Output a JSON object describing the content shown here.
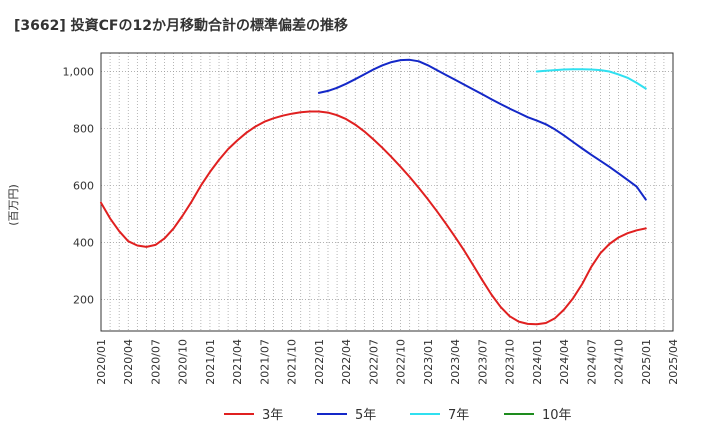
{
  "chart_data": {
    "type": "line",
    "title": "[3662]  投資CFの12か月移動合計の標準偏差の推移",
    "ylabel": "(百万円)",
    "xlabel": "",
    "ylim": [
      90,
      1065
    ],
    "yticks": [
      200,
      400,
      600,
      800,
      "1,000"
    ],
    "ytick_values": [
      200,
      400,
      600,
      800,
      1000
    ],
    "xlim": [
      "2020-01",
      "2025-04"
    ],
    "xticks": [
      "2020/01",
      "2020/04",
      "2020/07",
      "2020/10",
      "2021/01",
      "2021/04",
      "2021/07",
      "2021/10",
      "2022/01",
      "2022/04",
      "2022/07",
      "2022/10",
      "2023/01",
      "2023/04",
      "2023/07",
      "2023/10",
      "2024/01",
      "2024/04",
      "2024/07",
      "2024/10",
      "2025/01",
      "2025/04"
    ],
    "grid": true,
    "legend_position": "bottom",
    "series": [
      {
        "name": "3年",
        "color": "#e02020",
        "x": [
          "2020-01",
          "2020-02",
          "2020-03",
          "2020-04",
          "2020-05",
          "2020-06",
          "2020-07",
          "2020-08",
          "2020-09",
          "2020-10",
          "2020-11",
          "2020-12",
          "2021-01",
          "2021-02",
          "2021-03",
          "2021-04",
          "2021-05",
          "2021-06",
          "2021-07",
          "2021-08",
          "2021-09",
          "2021-10",
          "2021-11",
          "2021-12",
          "2022-01",
          "2022-02",
          "2022-03",
          "2022-04",
          "2022-05",
          "2022-06",
          "2022-07",
          "2022-08",
          "2022-09",
          "2022-10",
          "2022-11",
          "2022-12",
          "2023-01",
          "2023-02",
          "2023-03",
          "2023-04",
          "2023-05",
          "2023-06",
          "2023-07",
          "2023-08",
          "2023-09",
          "2023-10",
          "2023-11",
          "2023-12",
          "2024-01",
          "2024-02",
          "2024-03",
          "2024-04",
          "2024-05",
          "2024-06",
          "2024-07",
          "2024-08",
          "2024-09",
          "2024-10",
          "2024-11",
          "2024-12",
          "2025-01"
        ],
        "values": [
          540,
          485,
          440,
          405,
          390,
          385,
          392,
          415,
          450,
          495,
          545,
          600,
          648,
          690,
          728,
          758,
          785,
          807,
          824,
          836,
          845,
          852,
          857,
          860,
          860,
          856,
          847,
          833,
          814,
          790,
          762,
          732,
          700,
          666,
          630,
          592,
          552,
          510,
          466,
          420,
          372,
          320,
          268,
          218,
          175,
          142,
          123,
          115,
          114,
          118,
          135,
          165,
          205,
          255,
          315,
          363,
          395,
          418,
          433,
          443,
          450
        ]
      },
      {
        "name": "5年",
        "color": "#1428c8",
        "x": [
          "2022-01",
          "2022-02",
          "2022-03",
          "2022-04",
          "2022-05",
          "2022-06",
          "2022-07",
          "2022-08",
          "2022-09",
          "2022-10",
          "2022-11",
          "2022-12",
          "2023-01",
          "2023-02",
          "2023-03",
          "2023-04",
          "2023-05",
          "2023-06",
          "2023-07",
          "2023-08",
          "2023-09",
          "2023-10",
          "2023-11",
          "2023-12",
          "2024-01",
          "2024-02",
          "2024-03",
          "2024-04",
          "2024-05",
          "2024-06",
          "2024-07",
          "2024-08",
          "2024-09",
          "2024-10",
          "2024-11",
          "2024-12",
          "2025-01"
        ],
        "values": [
          925,
          932,
          943,
          957,
          973,
          990,
          1007,
          1022,
          1033,
          1040,
          1041,
          1036,
          1022,
          1005,
          988,
          971,
          954,
          937,
          920,
          903,
          886,
          870,
          855,
          840,
          828,
          815,
          797,
          776,
          753,
          730,
          708,
          687,
          666,
          643,
          620,
          596,
          551
        ]
      },
      {
        "name": "7年",
        "color": "#30e0f0",
        "x": [
          "2024-01",
          "2024-02",
          "2024-03",
          "2024-04",
          "2024-05",
          "2024-06",
          "2024-07",
          "2024-08",
          "2024-09",
          "2024-10",
          "2024-11",
          "2024-12",
          "2025-01"
        ],
        "values": [
          1000,
          1003,
          1005,
          1007,
          1008,
          1008,
          1007,
          1005,
          1000,
          990,
          978,
          960,
          940
        ]
      },
      {
        "name": "10年",
        "color": "#1e8c1e",
        "x": [],
        "values": []
      }
    ]
  }
}
